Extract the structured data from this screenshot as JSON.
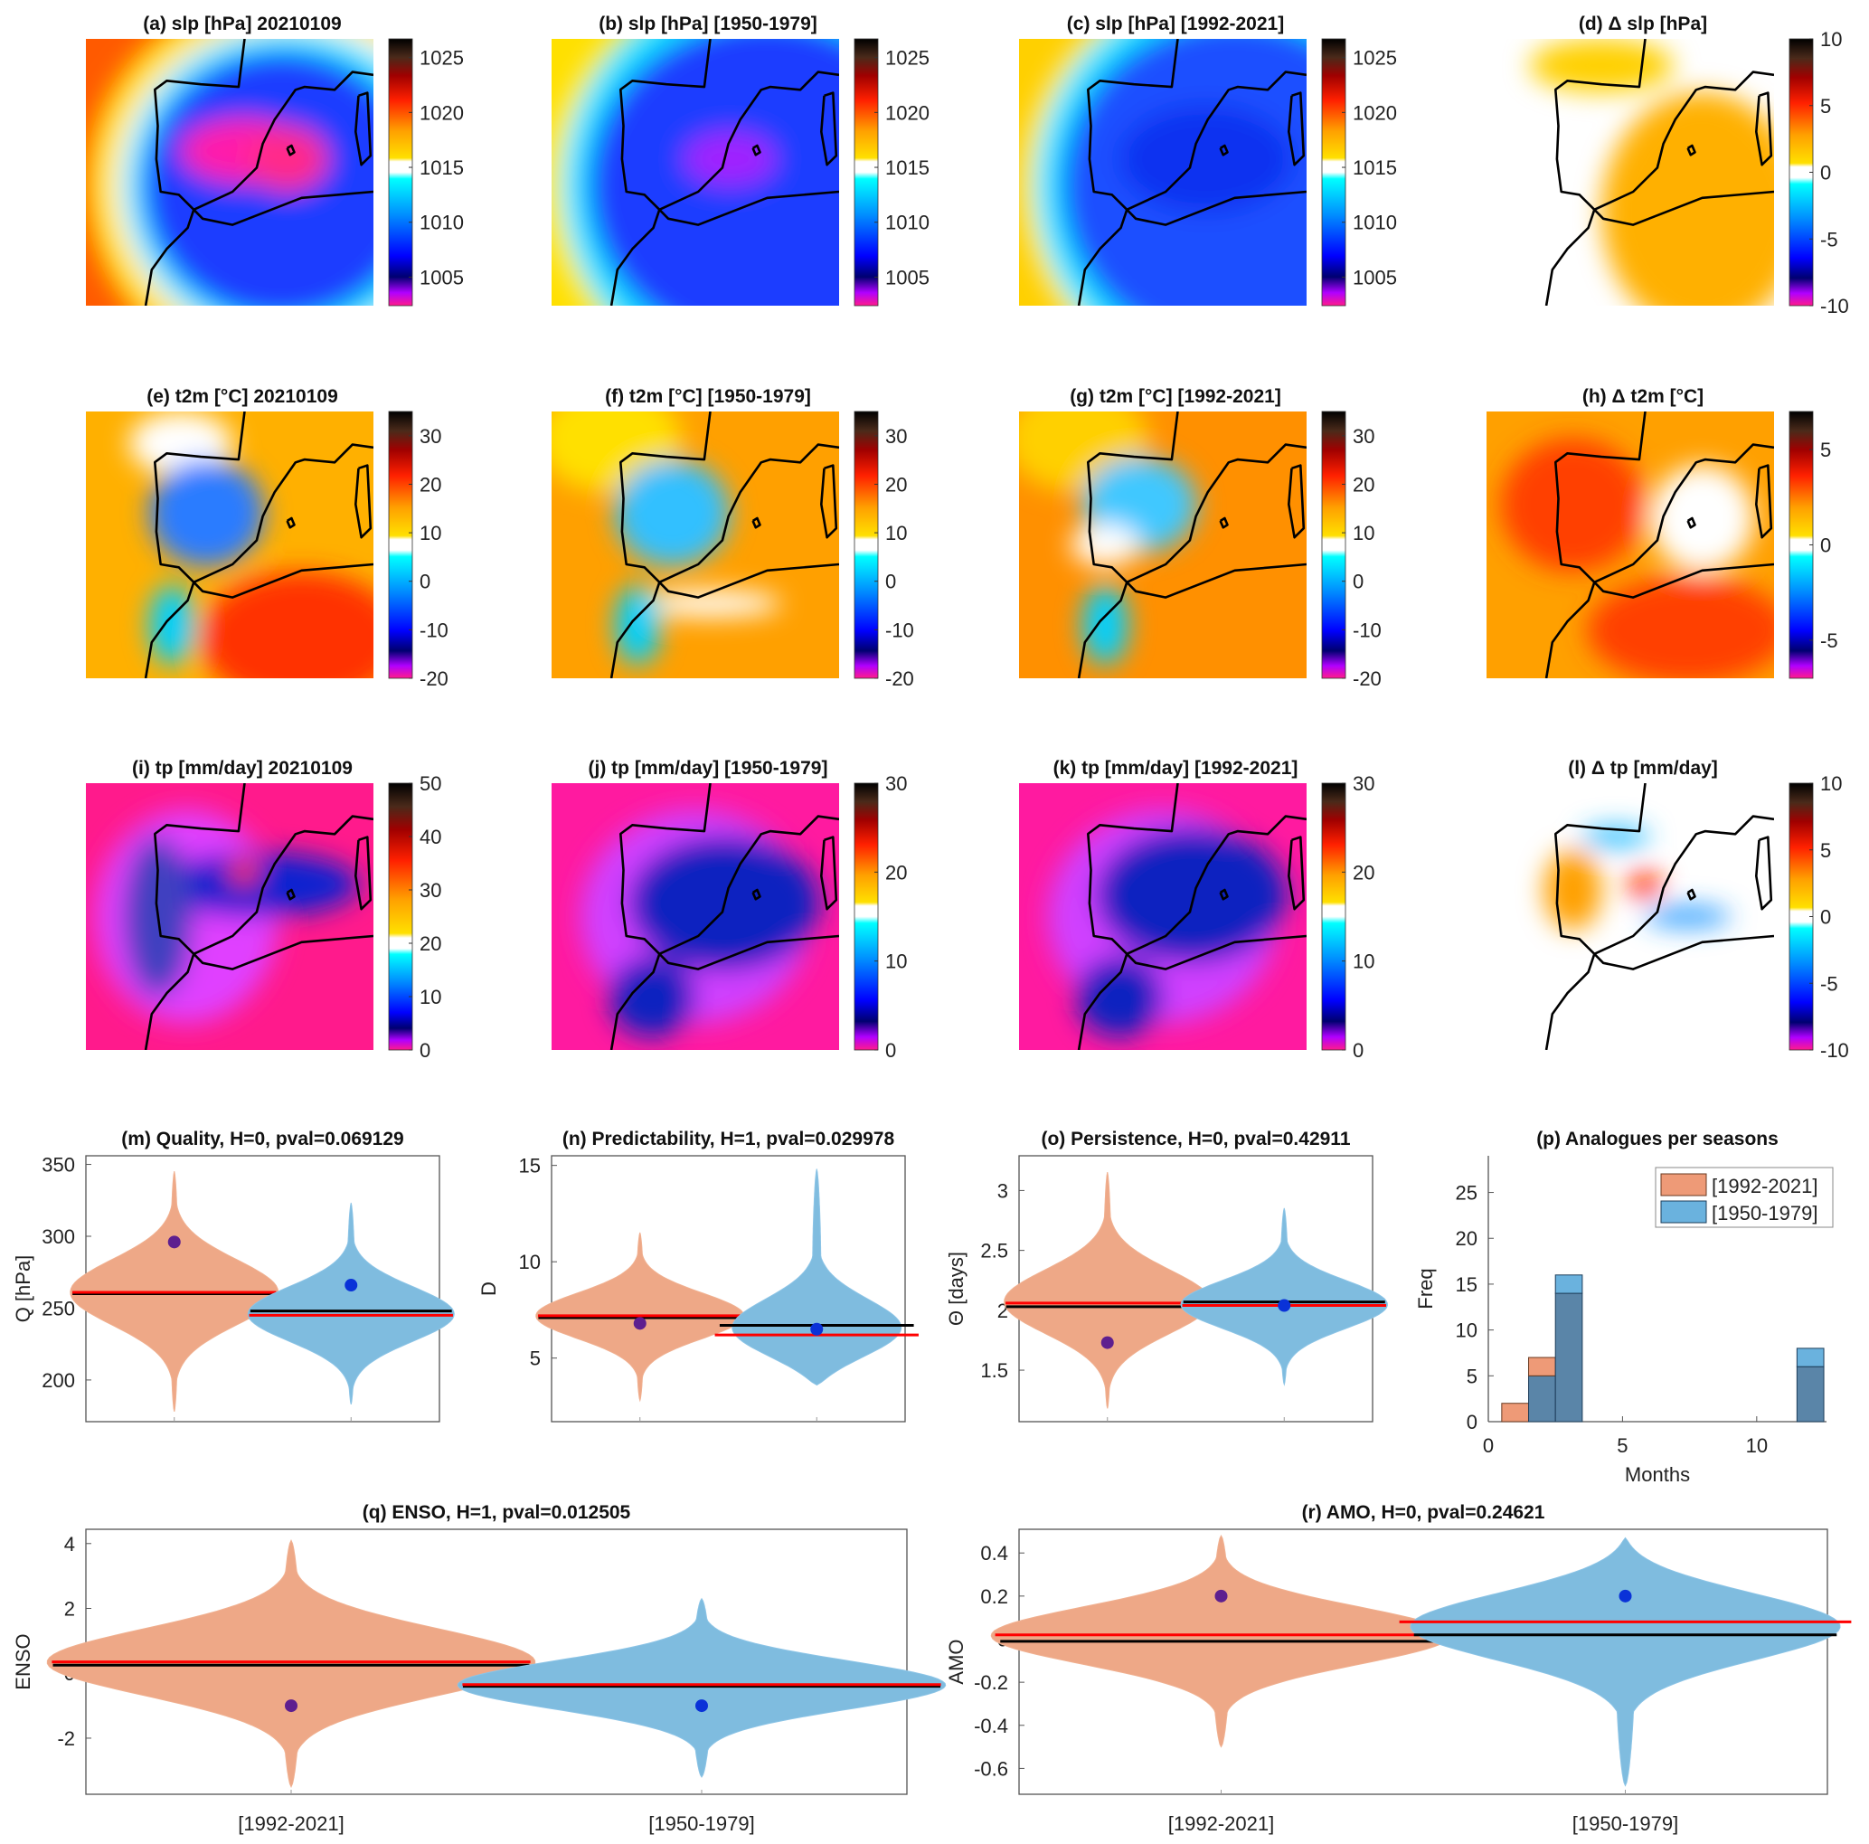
{
  "chart_data": [
    {
      "id": "a",
      "type": "heatmap",
      "title": "(a) slp [hPa] 20210109",
      "field": "slp",
      "colorbar": {
        "ticks": [
          1005,
          1010,
          1015,
          1020,
          1025
        ],
        "range": [
          1002.4,
          1026.7
        ]
      }
    },
    {
      "id": "b",
      "type": "heatmap",
      "title": "(b) slp [hPa] [1950-1979]",
      "field": "slp",
      "colorbar": {
        "ticks": [
          1005,
          1010,
          1015,
          1020,
          1025
        ],
        "range": [
          1002.4,
          1026.7
        ]
      }
    },
    {
      "id": "c",
      "type": "heatmap",
      "title": "(c) slp [hPa] [1992-2021]",
      "field": "slp",
      "colorbar": {
        "ticks": [
          1005,
          1010,
          1015,
          1020,
          1025
        ],
        "range": [
          1002.4,
          1026.7
        ]
      }
    },
    {
      "id": "d",
      "type": "heatmap",
      "title": "(d) Δ slp [hPa]",
      "field": "delta slp",
      "colorbar": {
        "ticks": [
          -10,
          -5,
          0,
          5,
          10
        ],
        "range": [
          -10,
          10
        ]
      }
    },
    {
      "id": "e",
      "type": "heatmap",
      "title": "(e) t2m [°C] 20210109",
      "field": "t2m",
      "colorbar": {
        "ticks": [
          -20,
          -10,
          0,
          10,
          20,
          30
        ],
        "range": [
          -20,
          35
        ]
      }
    },
    {
      "id": "f",
      "type": "heatmap",
      "title": "(f) t2m [°C] [1950-1979]",
      "field": "t2m",
      "colorbar": {
        "ticks": [
          -20,
          -10,
          0,
          10,
          20,
          30
        ],
        "range": [
          -20,
          35
        ]
      }
    },
    {
      "id": "g",
      "type": "heatmap",
      "title": "(g) t2m [°C] [1992-2021]",
      "field": "t2m",
      "colorbar": {
        "ticks": [
          -20,
          -10,
          0,
          10,
          20,
          30
        ],
        "range": [
          -20,
          35
        ]
      }
    },
    {
      "id": "h",
      "type": "heatmap",
      "title": "(h) Δ t2m [°C]",
      "field": "delta t2m",
      "colorbar": {
        "ticks": [
          -5,
          0,
          5
        ],
        "range": [
          -7,
          7
        ]
      }
    },
    {
      "id": "i",
      "type": "heatmap",
      "title": "(i) tp [mm/day] 20210109",
      "field": "tp",
      "colorbar": {
        "ticks": [
          0,
          10,
          20,
          30,
          40,
          50
        ],
        "range": [
          0,
          50
        ]
      }
    },
    {
      "id": "j",
      "type": "heatmap",
      "title": "(j) tp [mm/day] [1950-1979]",
      "field": "tp",
      "colorbar": {
        "ticks": [
          0,
          10,
          20,
          30
        ],
        "range": [
          0,
          30
        ]
      }
    },
    {
      "id": "k",
      "type": "heatmap",
      "title": "(k) tp [mm/day] [1992-2021]",
      "field": "tp",
      "colorbar": {
        "ticks": [
          0,
          10,
          20,
          30
        ],
        "range": [
          0,
          30
        ]
      }
    },
    {
      "id": "l",
      "type": "heatmap",
      "title": "(l) Δ tp [mm/day]",
      "field": "delta tp",
      "colorbar": {
        "ticks": [
          -10,
          -5,
          0,
          5,
          10
        ],
        "range": [
          -10,
          10
        ]
      }
    },
    {
      "id": "m",
      "type": "violin",
      "title": "(m)  Quality, H=0, pval=0.069129",
      "ylabel": "Q [hPa]",
      "ylim": [
        171,
        356
      ],
      "yticks": [
        200,
        250,
        300,
        350
      ],
      "categories": [
        "[1992-2021]",
        "[1950-1979]"
      ],
      "series": [
        {
          "name": "[1992-2021]",
          "min": 178,
          "max": 345,
          "mean": 260,
          "median": 261,
          "event": 296
        },
        {
          "name": "[1950-1979]",
          "min": 183,
          "max": 323,
          "mean": 248,
          "median": 245,
          "event": 266
        }
      ]
    },
    {
      "id": "n",
      "type": "violin",
      "title": "(n)  Predictability, H=1, pval=0.029978",
      "ylabel": "D",
      "ylim": [
        1.7,
        15.5
      ],
      "yticks": [
        5,
        10,
        15
      ],
      "categories": [
        "[1992-2021]",
        "[1950-1979]"
      ],
      "series": [
        {
          "name": "[1992-2021]",
          "min": 2.8,
          "max": 11.5,
          "mean": 7.1,
          "median": 7.2,
          "event": 6.8
        },
        {
          "name": "[1950-1979]",
          "min": 3.6,
          "max": 14.8,
          "mean": 6.7,
          "median": 6.2,
          "event": 6.5
        }
      ]
    },
    {
      "id": "o",
      "type": "violin",
      "title": "(o)  Persistence, H=0, pval=0.42911",
      "ylabel": "Θ [days]",
      "ylim": [
        1.07,
        3.29
      ],
      "yticks": [
        1.5,
        2,
        2.5,
        3
      ],
      "categories": [
        "[1992-2021]",
        "[1950-1979]"
      ],
      "series": [
        {
          "name": "[1992-2021]",
          "min": 1.18,
          "max": 3.15,
          "mean": 2.03,
          "median": 2.06,
          "event": 1.73
        },
        {
          "name": "[1950-1979]",
          "min": 1.38,
          "max": 2.85,
          "mean": 2.07,
          "median": 2.04,
          "event": 2.04
        }
      ]
    },
    {
      "id": "p",
      "type": "bar",
      "title": "(p) Analogues per seasons",
      "xlabel": "Months",
      "ylabel": "Freq",
      "xlim": [
        0,
        12.6
      ],
      "ylim": [
        0,
        29
      ],
      "xticks": [
        0,
        5,
        10
      ],
      "yticks": [
        0,
        5,
        10,
        15,
        20,
        25
      ],
      "legend_position": "top-right",
      "categories": [
        1,
        2,
        3,
        12
      ],
      "series": [
        {
          "name": "[1992-2021]",
          "values": [
            2,
            7,
            14,
            6
          ]
        },
        {
          "name": "[1950-1979]",
          "values": [
            0,
            5,
            16,
            8
          ]
        }
      ]
    },
    {
      "id": "q",
      "type": "violin",
      "title": "(q)  ENSO, H=1, pval=0.012505",
      "ylabel": "ENSO",
      "ylim": [
        -3.73,
        4.44
      ],
      "yticks": [
        -2,
        0,
        2,
        4
      ],
      "categories": [
        "[1992-2021]",
        "[1950-1979]"
      ],
      "series": [
        {
          "name": "[1992-2021]",
          "min": -3.5,
          "max": 4.1,
          "mean": 0.25,
          "median": 0.35,
          "event": -1.0
        },
        {
          "name": "[1950-1979]",
          "min": -3.2,
          "max": 2.3,
          "mean": -0.4,
          "median": -0.35,
          "event": -1.0
        }
      ]
    },
    {
      "id": "r",
      "type": "violin",
      "title": "(r)  AMO, H=0, pval=0.24621",
      "ylabel": "AMO",
      "ylim": [
        -0.72,
        0.51
      ],
      "yticks": [
        -0.6,
        -0.4,
        -0.2,
        0,
        0.2,
        0.4
      ],
      "categories": [
        "[1992-2021]",
        "[1950-1979]"
      ],
      "series": [
        {
          "name": "[1992-2021]",
          "min": -0.5,
          "max": 0.48,
          "mean": -0.01,
          "median": 0.02,
          "event": 0.2
        },
        {
          "name": "[1950-1979]",
          "min": -0.68,
          "max": 0.47,
          "mean": 0.02,
          "median": 0.08,
          "event": 0.2
        }
      ]
    }
  ],
  "colors": {
    "recent": "#eea887",
    "past": "#7fbcdf",
    "recent_event": "#5e1f8f",
    "past_event": "#0a32d8",
    "mean_line": "#000000",
    "median_line": "#ff0000"
  }
}
